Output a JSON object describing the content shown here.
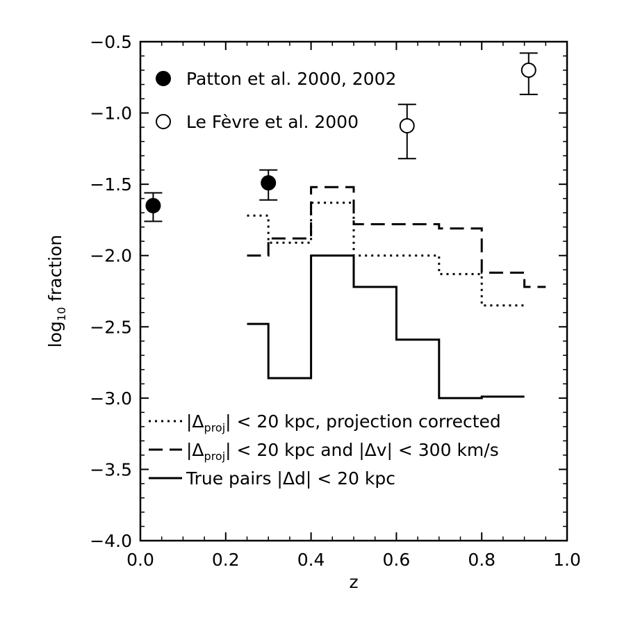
{
  "chart_data": {
    "type": "line",
    "title": "",
    "xlabel": "z",
    "ylabel_main": "log",
    "ylabel_sub": "10",
    "ylabel_rest": " fraction",
    "xlim": [
      0.0,
      1.0
    ],
    "ylim": [
      -4.0,
      -0.5
    ],
    "xticks": [
      "0.0",
      "0.2",
      "0.4",
      "0.6",
      "0.8",
      "1.0"
    ],
    "yticks": [
      "-0.5",
      "-1.0",
      "-1.5",
      "-2.0",
      "-2.5",
      "-3.0",
      "-3.5",
      "-4.0"
    ],
    "grid": false,
    "points": [
      {
        "name": "Patton et al. 2000, 2002",
        "marker": "filled-circle",
        "data": [
          {
            "x": 0.03,
            "y": -1.65,
            "ylo": -1.76,
            "yhi": -1.56
          },
          {
            "x": 0.3,
            "y": -1.49,
            "ylo": -1.61,
            "yhi": -1.4
          }
        ]
      },
      {
        "name": "Le Fèvre et al. 2000",
        "marker": "open-circle",
        "data": [
          {
            "x": 0.625,
            "y": -1.09,
            "ylo": -1.32,
            "yhi": -0.94
          },
          {
            "x": 0.91,
            "y": -0.7,
            "ylo": -0.87,
            "yhi": -0.58
          }
        ]
      }
    ],
    "series": [
      {
        "name_pre": "|Δ",
        "name_sub": "proj",
        "name_post": "| < 20 kpc, projection corrected",
        "style": "dotted",
        "bins": [
          {
            "x0": 0.25,
            "x1": 0.3,
            "y": -1.72
          },
          {
            "x0": 0.3,
            "x1": 0.4,
            "y": -1.91
          },
          {
            "x0": 0.4,
            "x1": 0.5,
            "y": -1.63
          },
          {
            "x0": 0.5,
            "x1": 0.7,
            "y": -2.0
          },
          {
            "x0": 0.7,
            "x1": 0.8,
            "y": -2.13
          },
          {
            "x0": 0.8,
            "x1": 0.9,
            "y": -2.35
          }
        ]
      },
      {
        "name_pre": "|Δ",
        "name_sub": "proj",
        "name_post": "| < 20 kpc and |Δv| < 300 km/s",
        "style": "dashed",
        "bins": [
          {
            "x0": 0.25,
            "x1": 0.3,
            "y": -2.0
          },
          {
            "x0": 0.3,
            "x1": 0.4,
            "y": -1.88
          },
          {
            "x0": 0.4,
            "x1": 0.5,
            "y": -1.52
          },
          {
            "x0": 0.5,
            "x1": 0.7,
            "y": -1.78
          },
          {
            "x0": 0.7,
            "x1": 0.8,
            "y": -1.81
          },
          {
            "x0": 0.8,
            "x1": 0.9,
            "y": -2.12
          },
          {
            "x0": 0.9,
            "x1": 0.95,
            "y": -2.22
          }
        ]
      },
      {
        "name_pre": "True pairs |Δd| < 20 kpc",
        "name_sub": "",
        "name_post": "",
        "style": "solid",
        "bins": [
          {
            "x0": 0.25,
            "x1": 0.3,
            "y": -2.48
          },
          {
            "x0": 0.3,
            "x1": 0.4,
            "y": -2.86
          },
          {
            "x0": 0.4,
            "x1": 0.5,
            "y": -2.0
          },
          {
            "x0": 0.5,
            "x1": 0.6,
            "y": -2.22
          },
          {
            "x0": 0.6,
            "x1": 0.7,
            "y": -2.59
          },
          {
            "x0": 0.7,
            "x1": 0.8,
            "y": -3.0
          },
          {
            "x0": 0.8,
            "x1": 0.9,
            "y": -2.99
          }
        ]
      }
    ]
  }
}
